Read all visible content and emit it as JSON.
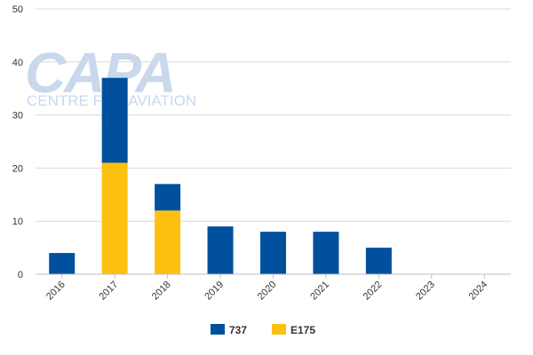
{
  "chart_data": {
    "type": "bar",
    "stacked": true,
    "categories": [
      "2016",
      "2017",
      "2018",
      "2019",
      "2020",
      "2021",
      "2022",
      "2023",
      "2024"
    ],
    "series": [
      {
        "name": "E175",
        "color": "#FCC010",
        "values": [
          0,
          21,
          12,
          0,
          0,
          0,
          0,
          0,
          0
        ]
      },
      {
        "name": "737",
        "color": "#00509E",
        "values": [
          4,
          16,
          5,
          9,
          8,
          8,
          5,
          0,
          0
        ]
      }
    ],
    "ylim": [
      0,
      50
    ],
    "yticks": [
      0,
      10,
      20,
      30,
      40,
      50
    ],
    "grid": true,
    "legend": {
      "placement": "bottom-center",
      "order": [
        "737",
        "E175"
      ]
    }
  },
  "watermark": {
    "line1": "CAPA",
    "line2": "CENTRE FOR AVIATION",
    "color": "#C9D8EC"
  }
}
